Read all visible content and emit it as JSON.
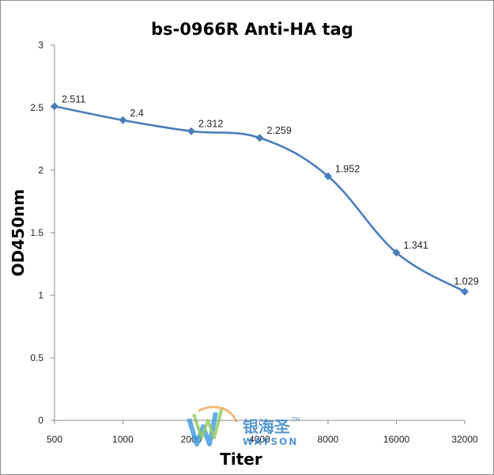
{
  "chart_data": {
    "type": "line",
    "title": "bs-0966R Anti-HA tag",
    "xlabel": "Titer",
    "ylabel": "OD450nm",
    "categories": [
      "500",
      "1000",
      "2000",
      "4000",
      "8000",
      "16000",
      "32000"
    ],
    "series": [
      {
        "values": [
          2.511,
          2.4,
          2.312,
          2.259,
          1.952,
          1.341,
          1.029
        ]
      }
    ],
    "data_labels": [
      "2.511",
      "2.4",
      "2.312",
      "2.259",
      "1.952",
      "1.341",
      "1.029"
    ],
    "ylim": [
      0,
      3
    ],
    "yticks": [
      "0",
      "0.5",
      "1",
      "1.5",
      "2",
      "2.5",
      "3"
    ],
    "grid": false,
    "legend": "none",
    "smooth": true,
    "series_color": "#4a7ebb"
  },
  "watermark": {
    "brand_cn": "银海圣",
    "brand_en": "WAYSON",
    "trademark": "TM"
  }
}
